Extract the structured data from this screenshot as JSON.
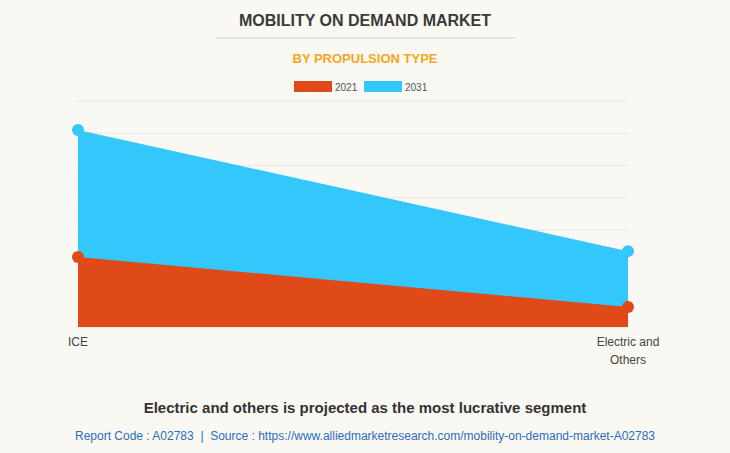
{
  "chart_data": {
    "type": "area",
    "title": "MOBILITY ON DEMAND MARKET",
    "subtitle": "BY PROPULSION TYPE",
    "categories": [
      "ICE",
      "Electric and Others"
    ],
    "series": [
      {
        "name": "2021",
        "color": "#e04a18",
        "values": [
          2.17,
          0.62
        ]
      },
      {
        "name": "2031",
        "color": "#33c7fc",
        "values": [
          6.1,
          2.35
        ]
      }
    ],
    "ylim": [
      0,
      7
    ],
    "yticks": [
      0,
      1,
      2,
      3,
      4,
      5,
      6,
      7
    ],
    "grid": true,
    "tick_labels": "x",
    "marker": "circle",
    "legend": "top",
    "annotation": "Electric and others is projected as the most lucrative segment",
    "footer": "Report Code : A02783  |  Source : https://www.alliedmarketresearch.com/mobility-on-demand-market-A02783"
  }
}
